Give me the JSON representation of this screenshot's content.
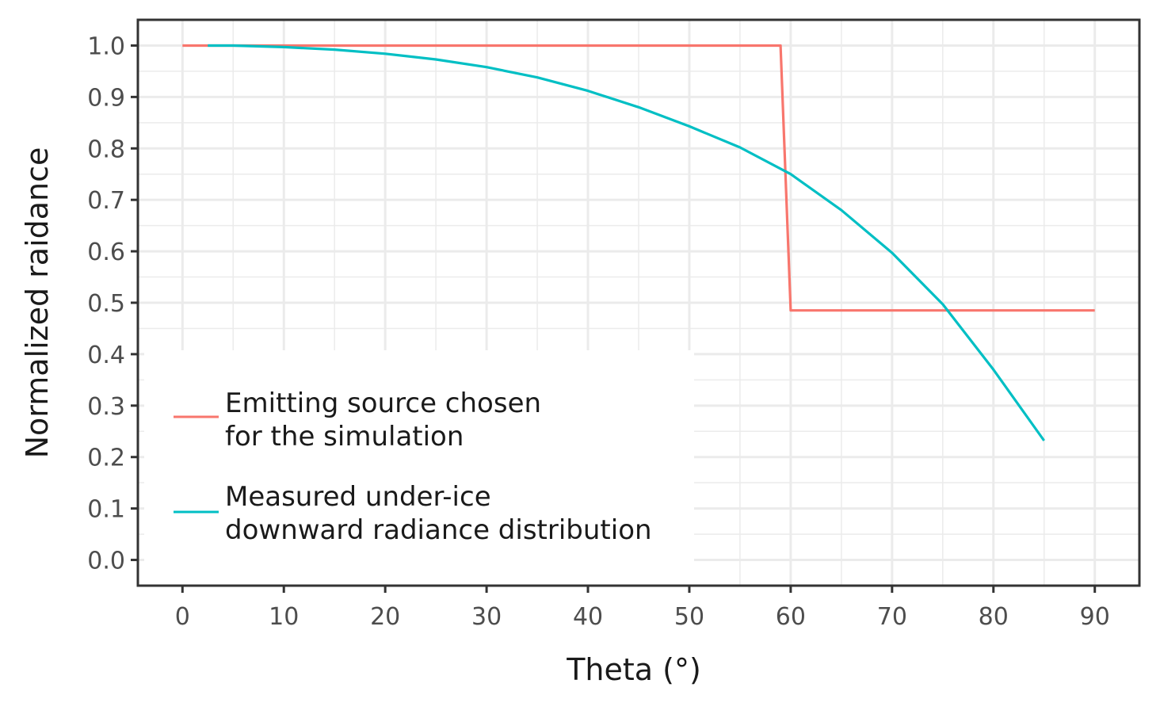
{
  "chart_data": {
    "type": "line",
    "title": "",
    "xlabel": "Theta  (°)",
    "ylabel": "Normalized raidance",
    "xlim": [
      -4.4,
      94.4
    ],
    "ylim": [
      -0.05,
      1.05
    ],
    "x_ticks": [
      0,
      10,
      20,
      30,
      40,
      50,
      60,
      70,
      80,
      90
    ],
    "x_tick_labels": [
      "0",
      "10",
      "20",
      "30",
      "40",
      "50",
      "60",
      "70",
      "80",
      "90"
    ],
    "y_ticks": [
      0.0,
      0.1,
      0.2,
      0.3,
      0.4,
      0.5,
      0.6,
      0.7,
      0.8,
      0.9,
      1.0
    ],
    "y_tick_labels": [
      "0.0",
      "0.1",
      "0.2",
      "0.3",
      "0.4",
      "0.5",
      "0.6",
      "0.7",
      "0.8",
      "0.9",
      "1.0"
    ],
    "grid": true,
    "legend_position": "bottom-left",
    "series": [
      {
        "name": "Emitting source chosen\nfor the simulation",
        "color": "#F8766D",
        "x": [
          0,
          59,
          60,
          90
        ],
        "y": [
          1.0,
          1.0,
          0.485,
          0.485
        ]
      },
      {
        "name": "Measured under-ice\ndownward radiance distribution",
        "color": "#00BFC4",
        "x": [
          2.5,
          5,
          10,
          15,
          20,
          25,
          30,
          35,
          40,
          45,
          50,
          55,
          60,
          65,
          70,
          75,
          80,
          85
        ],
        "y": [
          1.0,
          1.0,
          0.997,
          0.992,
          0.984,
          0.973,
          0.958,
          0.938,
          0.912,
          0.88,
          0.843,
          0.802,
          0.75,
          0.68,
          0.597,
          0.497,
          0.37,
          0.232
        ]
      }
    ]
  }
}
